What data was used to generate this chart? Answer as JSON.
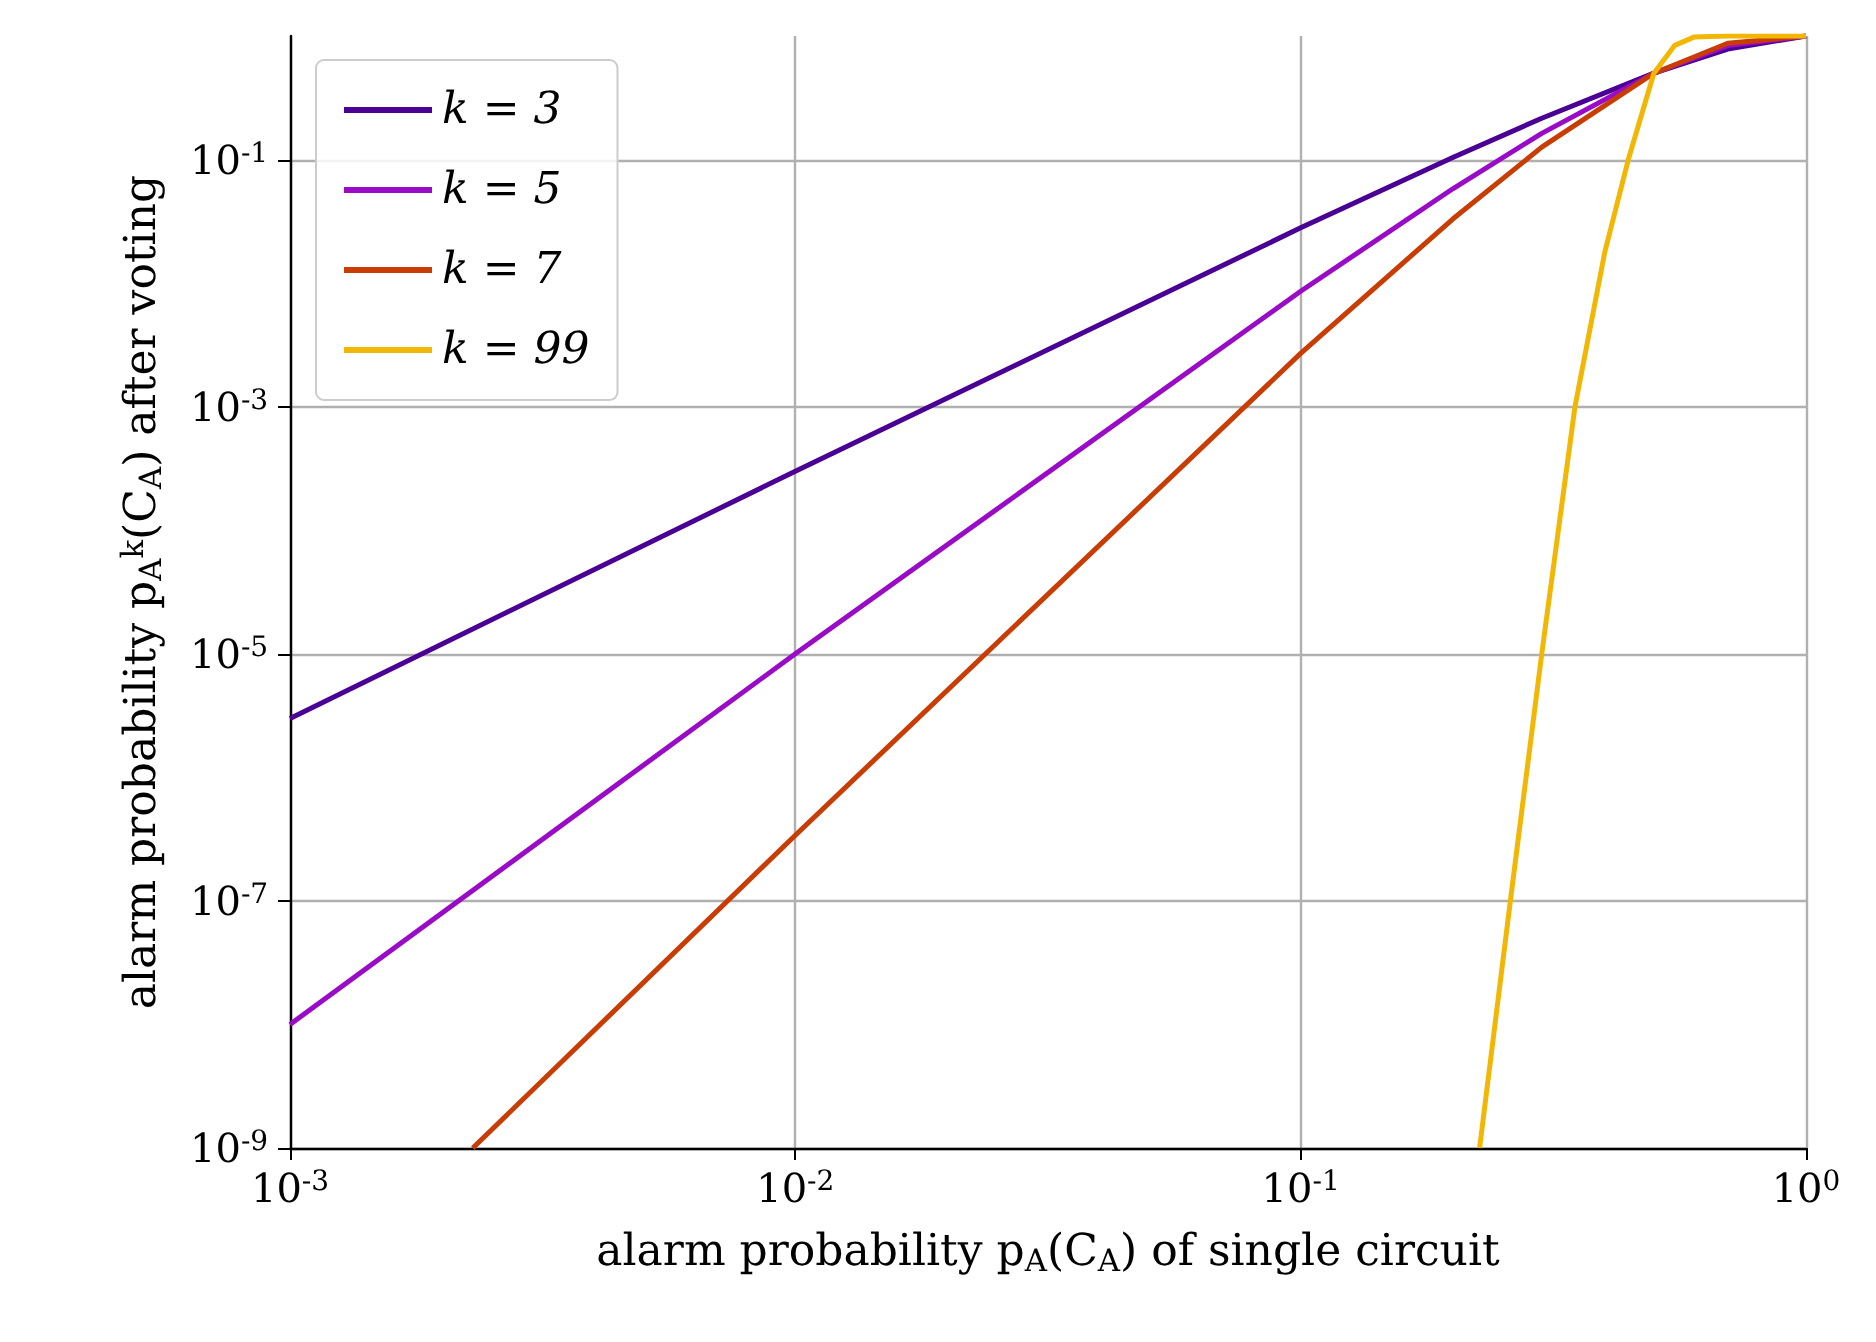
{
  "chart_data": {
    "type": "line",
    "xlabel": "alarm probability p$_{A}$(C$_{A}$) of single circuit",
    "ylabel": "alarm probability p$_{A}$$^{k}$(C$_{A}$) after voting",
    "log": "xy",
    "grid": true,
    "legend": "top left",
    "marker": "none",
    "line_style": "solid",
    "xlim": [
      0.001,
      1
    ],
    "ylim": [
      1e-09,
      1
    ],
    "xticks": [
      {
        "value": 0.001,
        "label": "10$^{-3}$"
      },
      {
        "value": 0.01,
        "label": "10$^{-2}$"
      },
      {
        "value": 0.1,
        "label": "10$^{-1}$"
      },
      {
        "value": 1,
        "label": "10$^{0}$"
      }
    ],
    "yticks": [
      {
        "value": 1e-09,
        "label": "10$^{-9}$"
      },
      {
        "value": 1e-07,
        "label": "10$^{-7}$"
      },
      {
        "value": 1e-05,
        "label": "10$^{-5}$"
      },
      {
        "value": 0.001,
        "label": "10$^{-3}$"
      },
      {
        "value": 0.1,
        "label": "10$^{-1}$"
      }
    ],
    "series": [
      {
        "name": "k = 3",
        "color": "#4b0095",
        "x": [
          0.001,
          0.01,
          0.1,
          0.2,
          0.3,
          0.5,
          0.7,
          1
        ],
        "values": [
          3e-06,
          0.0003,
          0.028,
          0.104,
          0.216,
          0.5,
          0.784,
          1
        ]
      },
      {
        "name": "k = 5",
        "color": "#9a0bc8",
        "x": [
          0.001,
          0.01,
          0.1,
          0.2,
          0.3,
          0.5,
          0.7,
          1
        ],
        "values": [
          1e-08,
          1e-05,
          0.0086,
          0.058,
          0.163,
          0.5,
          0.837,
          1
        ]
      },
      {
        "name": "k = 7",
        "color": "#c93c03",
        "x": [
          0.0023,
          0.01,
          0.1,
          0.2,
          0.3,
          0.5,
          0.7,
          1
        ],
        "values": [
          1e-09,
          3.4e-07,
          0.0027,
          0.033,
          0.126,
          0.5,
          0.874,
          1
        ]
      },
      {
        "name": "k = 99",
        "color": "#f2b705",
        "x": [
          0.226,
          0.26,
          0.3,
          0.349,
          0.4,
          0.445,
          0.5,
          0.55,
          0.6,
          0.7,
          1
        ],
        "values": [
          1e-09,
          1e-07,
          1e-05,
          0.001,
          0.018,
          0.1,
          0.5,
          0.84,
          0.98,
          1,
          1
        ]
      }
    ]
  }
}
